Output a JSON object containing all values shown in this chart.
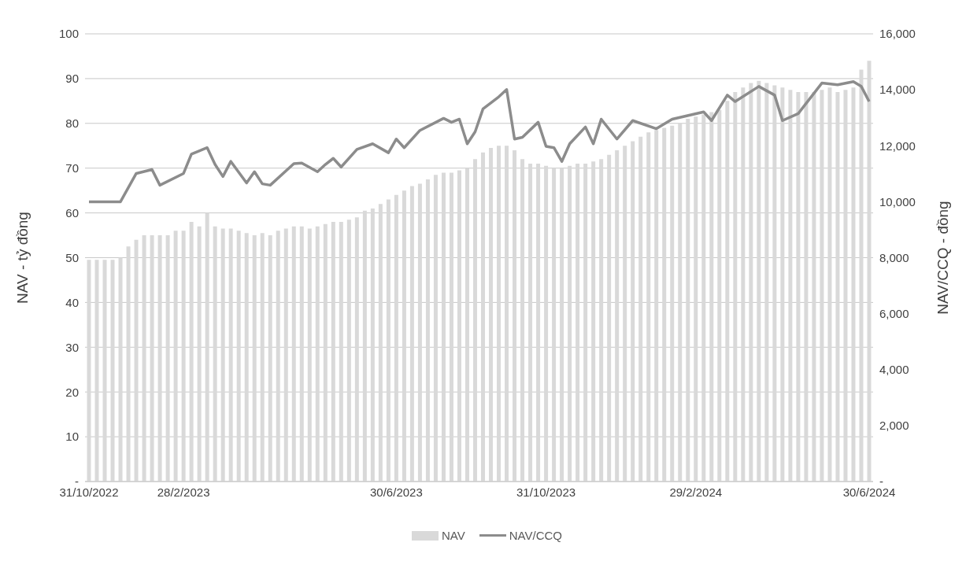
{
  "chart_data": {
    "type": "bar",
    "categories": [
      "31/10/2022",
      null,
      null,
      null,
      null,
      null,
      null,
      null,
      null,
      null,
      null,
      null,
      "28/2/2023",
      null,
      null,
      null,
      null,
      null,
      null,
      null,
      null,
      null,
      null,
      null,
      null,
      null,
      null,
      null,
      null,
      null,
      null,
      null,
      null,
      null,
      null,
      null,
      null,
      null,
      null,
      "30/6/2023",
      null,
      null,
      null,
      null,
      null,
      null,
      null,
      null,
      null,
      null,
      null,
      null,
      null,
      null,
      null,
      null,
      null,
      null,
      "31/10/2023",
      null,
      null,
      null,
      null,
      null,
      null,
      null,
      null,
      null,
      null,
      null,
      null,
      null,
      null,
      null,
      null,
      null,
      null,
      "29/2/2024",
      null,
      null,
      null,
      null,
      null,
      null,
      null,
      null,
      null,
      null,
      null,
      null,
      null,
      null,
      null,
      null,
      null,
      null,
      null,
      null,
      null,
      "30/6/2024"
    ],
    "series": [
      {
        "name": "NAV",
        "color": "#d9d9d9",
        "values": [
          49.5,
          49.5,
          49.5,
          49.5,
          50,
          52.5,
          54,
          55,
          55,
          55,
          55,
          56,
          56,
          58,
          57,
          60,
          57,
          56.5,
          56.5,
          56,
          55.5,
          55,
          55.5,
          55,
          56,
          56.5,
          57,
          57,
          56.5,
          57,
          57.5,
          58,
          58,
          58.5,
          59,
          60.5,
          61,
          62,
          63,
          64,
          65,
          66,
          66.5,
          67.5,
          68.5,
          69,
          69,
          69.5,
          70,
          72,
          73.5,
          74.5,
          75,
          75,
          74,
          72,
          71,
          71,
          70.5,
          70,
          70,
          70.5,
          71,
          71,
          71.5,
          72,
          73,
          74,
          75,
          76,
          77,
          78,
          78.5,
          79,
          79.5,
          80,
          81,
          81.5,
          82,
          82.5,
          83,
          85,
          87,
          88,
          89,
          89.5,
          89,
          88.5,
          88,
          87.5,
          87,
          87,
          87,
          87.5,
          88,
          87,
          87.5,
          88,
          92,
          94
        ]
      },
      {
        "name": "NAV/CCQ",
        "type": "line",
        "axis": "y2",
        "color": "#8c8c8c",
        "values": [
          10000,
          null,
          null,
          null,
          10000,
          null,
          11010,
          null,
          11150,
          10590,
          null,
          null,
          11010,
          11700,
          null,
          11930,
          11330,
          10900,
          11440,
          null,
          10670,
          11070,
          10640,
          10590,
          null,
          null,
          11360,
          11380,
          null,
          11070,
          11330,
          11550,
          11240,
          null,
          11870,
          null,
          12070,
          null,
          11750,
          12240,
          11930,
          null,
          12550,
          null,
          null,
          12980,
          12840,
          12950,
          12070,
          12500,
          13320,
          null,
          13750,
          14010,
          12240,
          12300,
          null,
          12840,
          11980,
          11930,
          11440,
          12070,
          null,
          12670,
          12070,
          12950,
          null,
          12240,
          null,
          12900,
          null,
          null,
          12610,
          null,
          12950,
          null,
          null,
          null,
          13210,
          12900,
          null,
          13810,
          13580,
          null,
          null,
          14120,
          null,
          13810,
          12900,
          null,
          13150,
          null,
          null,
          14240,
          null,
          14180,
          null,
          14290,
          14120,
          13580
        ]
      }
    ],
    "ylabel": "NAV - tỷ đồng",
    "y2label": "NAV/CCQ - đồng",
    "ylim": [
      0,
      100
    ],
    "yticks": [
      {
        "value": 0,
        "label": "-"
      },
      10,
      20,
      30,
      40,
      50,
      60,
      70,
      80,
      90,
      100
    ],
    "y2lim": [
      0,
      16000
    ],
    "y2ticks": [
      {
        "value": 0,
        "label": "-"
      },
      {
        "value": 2000,
        "label": "2,000"
      },
      {
        "value": 4000,
        "label": "4,000"
      },
      {
        "value": 6000,
        "label": "6,000"
      },
      {
        "value": 8000,
        "label": "8,000"
      },
      {
        "value": 10000,
        "label": "10,000"
      },
      {
        "value": 12000,
        "label": "12,000"
      },
      {
        "value": 14000,
        "label": "14,000"
      },
      {
        "value": 16000,
        "label": "16,000"
      }
    ],
    "grid": "y",
    "legend": "bottom"
  }
}
